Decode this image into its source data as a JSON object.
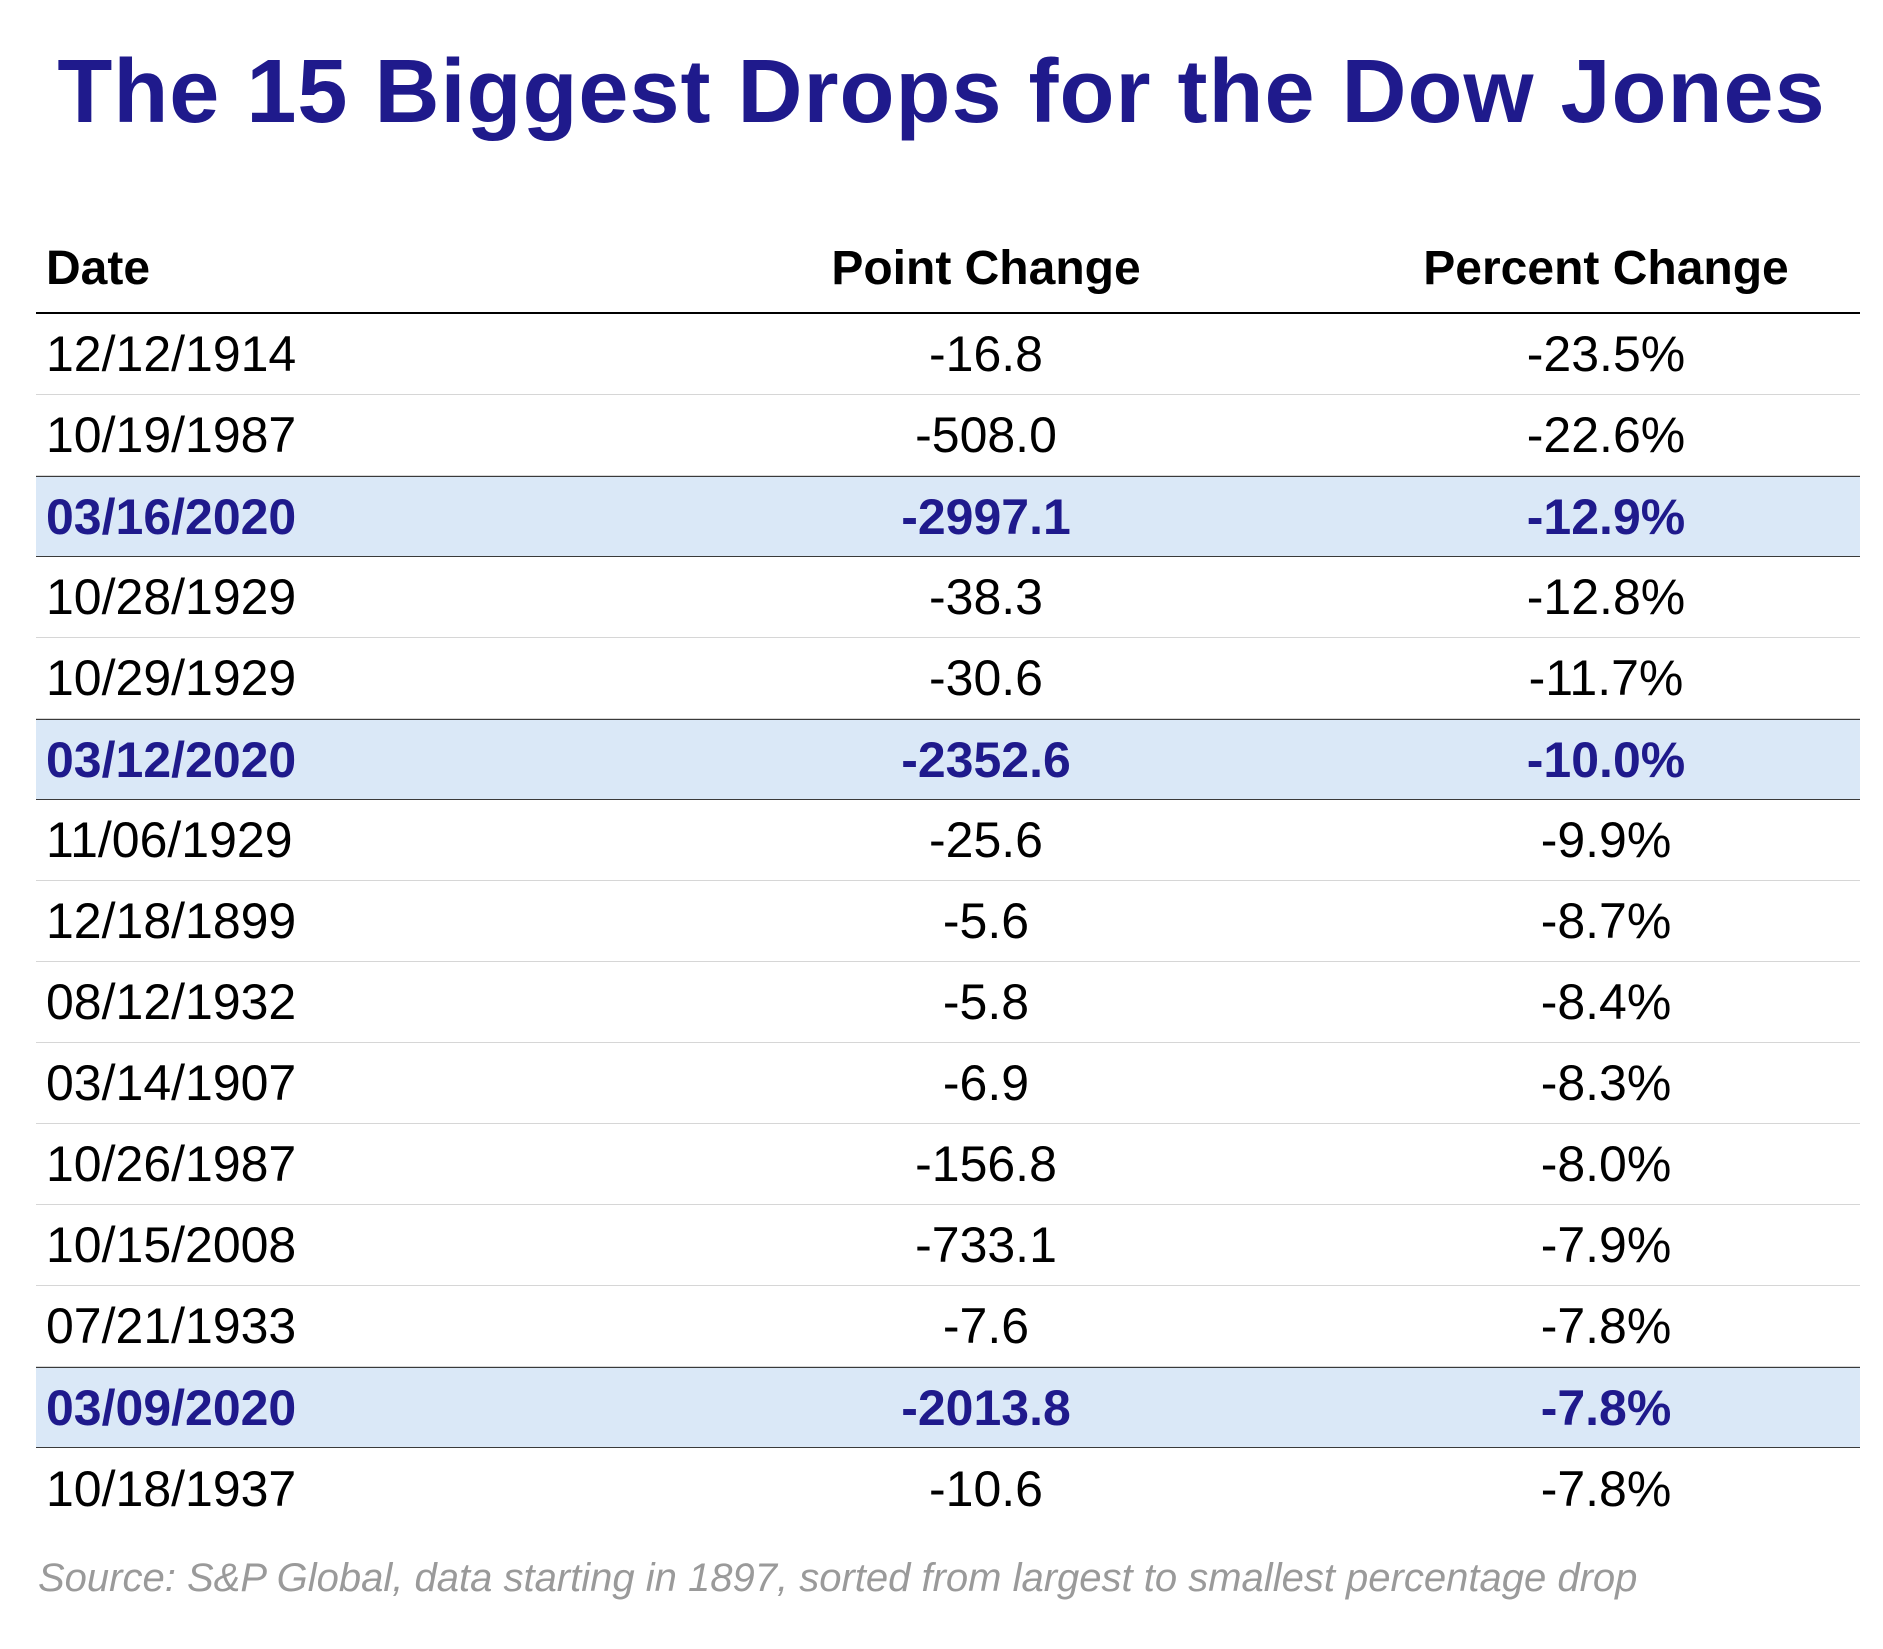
{
  "colors": {
    "title": "#1f1a8c",
    "highlight_text": "#1f1a8c",
    "highlight_bg": "#dae8f7",
    "source_text": "#9a9a9a"
  },
  "chart_data": {
    "type": "table",
    "title": "The 15 Biggest Drops for the Dow Jones",
    "columns": [
      "Date",
      "Point Change",
      "Percent Change"
    ],
    "rows": [
      {
        "date": "12/12/1914",
        "point": "-16.8",
        "pct": "-23.5%",
        "highlight": false
      },
      {
        "date": "10/19/1987",
        "point": "-508.0",
        "pct": "-22.6%",
        "highlight": false
      },
      {
        "date": "03/16/2020",
        "point": "-2997.1",
        "pct": "-12.9%",
        "highlight": true
      },
      {
        "date": "10/28/1929",
        "point": "-38.3",
        "pct": "-12.8%",
        "highlight": false
      },
      {
        "date": "10/29/1929",
        "point": "-30.6",
        "pct": "-11.7%",
        "highlight": false
      },
      {
        "date": "03/12/2020",
        "point": "-2352.6",
        "pct": "-10.0%",
        "highlight": true
      },
      {
        "date": "11/06/1929",
        "point": "-25.6",
        "pct": "-9.9%",
        "highlight": false
      },
      {
        "date": "12/18/1899",
        "point": "-5.6",
        "pct": "-8.7%",
        "highlight": false
      },
      {
        "date": "08/12/1932",
        "point": "-5.8",
        "pct": "-8.4%",
        "highlight": false
      },
      {
        "date": "03/14/1907",
        "point": "-6.9",
        "pct": "-8.3%",
        "highlight": false
      },
      {
        "date": "10/26/1987",
        "point": "-156.8",
        "pct": "-8.0%",
        "highlight": false
      },
      {
        "date": "10/15/2008",
        "point": "-733.1",
        "pct": "-7.9%",
        "highlight": false
      },
      {
        "date": "07/21/1933",
        "point": "-7.6",
        "pct": "-7.8%",
        "highlight": false
      },
      {
        "date": "03/09/2020",
        "point": "-2013.8",
        "pct": "-7.8%",
        "highlight": true
      },
      {
        "date": "10/18/1937",
        "point": "-10.6",
        "pct": "-7.8%",
        "highlight": false
      }
    ],
    "source": "Source: S&P Global, data starting in 1897, sorted from largest to smallest percentage drop"
  }
}
